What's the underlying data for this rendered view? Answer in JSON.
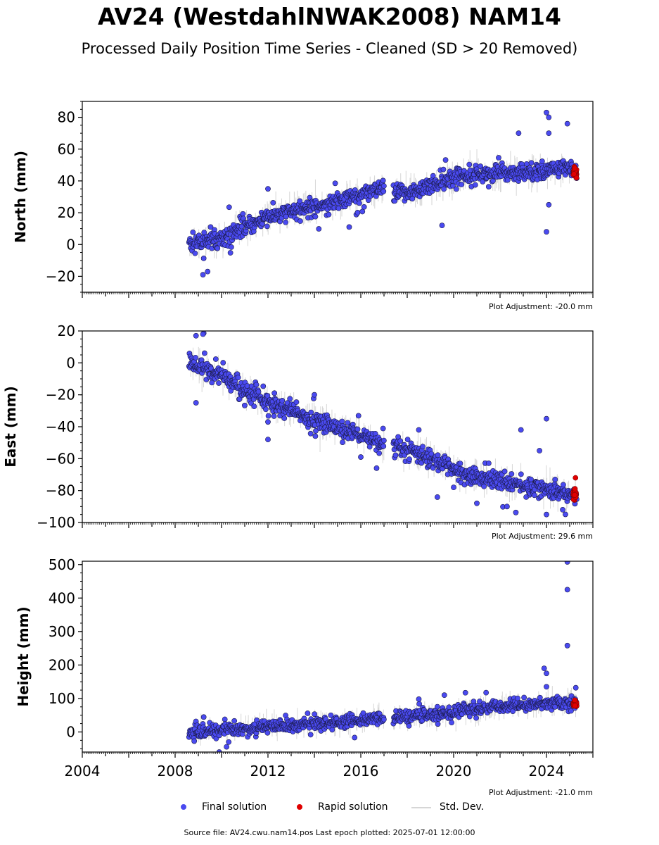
{
  "header": {
    "title": "AV24 (WestdahlNWAK2008) NAM14",
    "subtitle": "Processed Daily Position Time Series - Cleaned (SD > 20 Removed)"
  },
  "legend": {
    "final_label": "Final solution",
    "rapid_label": "Rapid solution",
    "std_label": "Std. Dev.",
    "final_color": "#4a4af0",
    "rapid_color": "#e00000",
    "std_color": "#d6d6d6"
  },
  "footer": {
    "text": "Source file: AV24.cwu.nam14.pos  Last epoch plotted: 2025-07-01 12:00:00"
  },
  "chart_data": [
    {
      "type": "scatter",
      "ylabel": "North (mm)",
      "ylim": [
        -30,
        90
      ],
      "yticks": [
        -20,
        0,
        20,
        40,
        60,
        80
      ],
      "xlim": [
        2004,
        2026
      ],
      "adjustment_text": "Plot Adjustment: -20.0 mm",
      "series": [
        {
          "name": "Final solution",
          "trend": [
            [
              2008.6,
              0
            ],
            [
              2010.0,
              4
            ],
            [
              2012.0,
              17
            ],
            [
              2014.0,
              24
            ],
            [
              2016.0,
              31
            ],
            [
              2017.0,
              35
            ],
            [
              2017.4,
              32
            ],
            [
              2018.5,
              34
            ],
            [
              2019.5,
              40
            ],
            [
              2020.5,
              44
            ],
            [
              2022.0,
              45
            ],
            [
              2024.0,
              47
            ],
            [
              2025.3,
              48
            ]
          ],
          "outliers": [
            [
              2009.2,
              -19
            ],
            [
              2009.4,
              -17
            ],
            [
              2012.0,
              35
            ],
            [
              2015.5,
              11
            ],
            [
              2019.5,
              12
            ],
            [
              2022.8,
              70
            ],
            [
              2024.0,
              8
            ],
            [
              2024.0,
              83
            ],
            [
              2024.1,
              80
            ],
            [
              2024.1,
              70
            ],
            [
              2024.1,
              25
            ],
            [
              2024.9,
              76
            ]
          ]
        },
        {
          "name": "Rapid solution",
          "x_range": [
            2025.15,
            2025.3
          ],
          "y_center": 46,
          "spread": 3
        }
      ]
    },
    {
      "type": "scatter",
      "ylabel": "East (mm)",
      "ylim": [
        -100,
        20
      ],
      "yticks": [
        -100,
        -80,
        -60,
        -40,
        -20,
        0,
        20
      ],
      "xlim": [
        2004,
        2026
      ],
      "adjustment_text": "Plot Adjustment: 29.6 mm",
      "series": [
        {
          "name": "Final solution",
          "trend": [
            [
              2008.6,
              0
            ],
            [
              2010.0,
              -8
            ],
            [
              2012.0,
              -25
            ],
            [
              2014.0,
              -36
            ],
            [
              2016.0,
              -45
            ],
            [
              2017.0,
              -53
            ],
            [
              2017.4,
              -53
            ],
            [
              2018.5,
              -57
            ],
            [
              2019.5,
              -63
            ],
            [
              2020.5,
              -70
            ],
            [
              2022.0,
              -74
            ],
            [
              2024.0,
              -79
            ],
            [
              2025.3,
              -84
            ]
          ],
          "outliers": [
            [
              2008.9,
              -25
            ],
            [
              2008.9,
              17
            ],
            [
              2009.2,
              18
            ],
            [
              2012.0,
              -48
            ],
            [
              2012.0,
              -37
            ],
            [
              2014.0,
              -20
            ],
            [
              2016.0,
              -59
            ],
            [
              2018.5,
              -42
            ],
            [
              2020.0,
              -78
            ],
            [
              2021.0,
              -88
            ],
            [
              2022.3,
              -90
            ],
            [
              2022.9,
              -42
            ],
            [
              2023.7,
              -55
            ],
            [
              2024.0,
              -35
            ],
            [
              2024.0,
              -95
            ],
            [
              2024.7,
              -92
            ]
          ]
        },
        {
          "name": "Rapid solution",
          "x_range": [
            2025.15,
            2025.3
          ],
          "y_center": -82,
          "spread": 4,
          "extra": [
            [
              2025.25,
              -72
            ]
          ]
        }
      ]
    },
    {
      "type": "scatter",
      "ylabel": "Height (mm)",
      "ylim": [
        -60,
        510
      ],
      "yticks": [
        0,
        100,
        200,
        300,
        400,
        500
      ],
      "xlim": [
        2004,
        2026
      ],
      "xticks": [
        2004,
        2008,
        2012,
        2016,
        2020,
        2024
      ],
      "adjustment_text": "Plot Adjustment: -21.0 mm",
      "series": [
        {
          "name": "Final solution",
          "trend": [
            [
              2008.6,
              -5
            ],
            [
              2010.0,
              5
            ],
            [
              2012.0,
              15
            ],
            [
              2014.0,
              25
            ],
            [
              2016.0,
              35
            ],
            [
              2017.0,
              40
            ],
            [
              2017.4,
              42
            ],
            [
              2018.5,
              48
            ],
            [
              2019.5,
              55
            ],
            [
              2020.5,
              65
            ],
            [
              2022.0,
              75
            ],
            [
              2024.0,
              85
            ],
            [
              2025.3,
              88
            ]
          ],
          "outliers": [
            [
              2009.9,
              -60
            ],
            [
              2018.5,
              98
            ],
            [
              2019.6,
              110
            ],
            [
              2023.9,
              190
            ],
            [
              2024.0,
              175
            ],
            [
              2024.0,
              135
            ],
            [
              2024.9,
              258
            ],
            [
              2024.9,
              425
            ],
            [
              2024.9,
              508
            ]
          ]
        },
        {
          "name": "Rapid solution",
          "x_range": [
            2025.15,
            2025.3
          ],
          "y_center": 85,
          "spread": 8
        }
      ]
    }
  ]
}
